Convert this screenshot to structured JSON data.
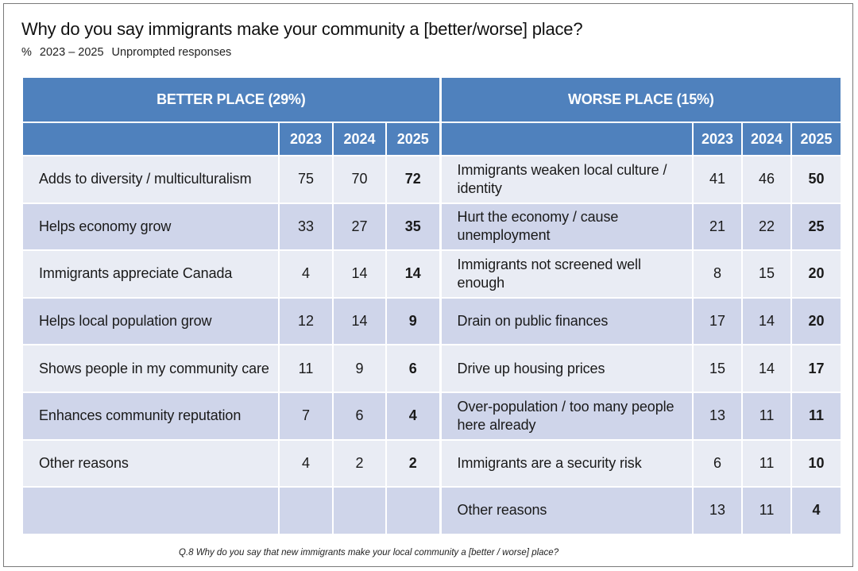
{
  "header": {
    "title": "Why do you say immigrants make your community a [better/worse] place?",
    "subtitle_unit": "%",
    "subtitle_range": "2023 – 2025",
    "subtitle_note": "Unprompted responses"
  },
  "chart_data": {
    "type": "table",
    "years": [
      "2023",
      "2024",
      "2025"
    ],
    "better": {
      "heading": "BETTER PLACE (29%)",
      "rows": [
        {
          "label": "Adds to diversity / multiculturalism",
          "v2023": "75",
          "v2024": "70",
          "v2025": "72"
        },
        {
          "label": "Helps economy grow",
          "v2023": "33",
          "v2024": "27",
          "v2025": "35"
        },
        {
          "label": "Immigrants appreciate Canada",
          "v2023": "4",
          "v2024": "14",
          "v2025": "14"
        },
        {
          "label": "Helps local population grow",
          "v2023": "12",
          "v2024": "14",
          "v2025": "9"
        },
        {
          "label": "Shows people in my community care",
          "v2023": "11",
          "v2024": "9",
          "v2025": "6"
        },
        {
          "label": "Enhances community reputation",
          "v2023": "7",
          "v2024": "6",
          "v2025": "4"
        },
        {
          "label": "Other reasons",
          "v2023": "4",
          "v2024": "2",
          "v2025": "2"
        }
      ]
    },
    "worse": {
      "heading": "WORSE PLACE (15%)",
      "rows": [
        {
          "label": "Immigrants weaken local culture / identity",
          "v2023": "41",
          "v2024": "46",
          "v2025": "50"
        },
        {
          "label": "Hurt the economy / cause unemployment",
          "v2023": "21",
          "v2024": "22",
          "v2025": "25"
        },
        {
          "label": "Immigrants not screened well enough",
          "v2023": "8",
          "v2024": "15",
          "v2025": "20"
        },
        {
          "label": "Drain on public finances",
          "v2023": "17",
          "v2024": "14",
          "v2025": "20"
        },
        {
          "label": "Drive up housing prices",
          "v2023": "15",
          "v2024": "14",
          "v2025": "17"
        },
        {
          "label": "Over-population / too many people here already",
          "v2023": "13",
          "v2024": "11",
          "v2025": "11"
        },
        {
          "label": "Immigrants are a security risk",
          "v2023": "6",
          "v2024": "11",
          "v2025": "10"
        },
        {
          "label": "Other reasons",
          "v2023": "13",
          "v2024": "11",
          "v2025": "4"
        }
      ]
    }
  },
  "footnote": "Q.8  Why do you say that new immigrants make your local community a [better / worse] place?"
}
